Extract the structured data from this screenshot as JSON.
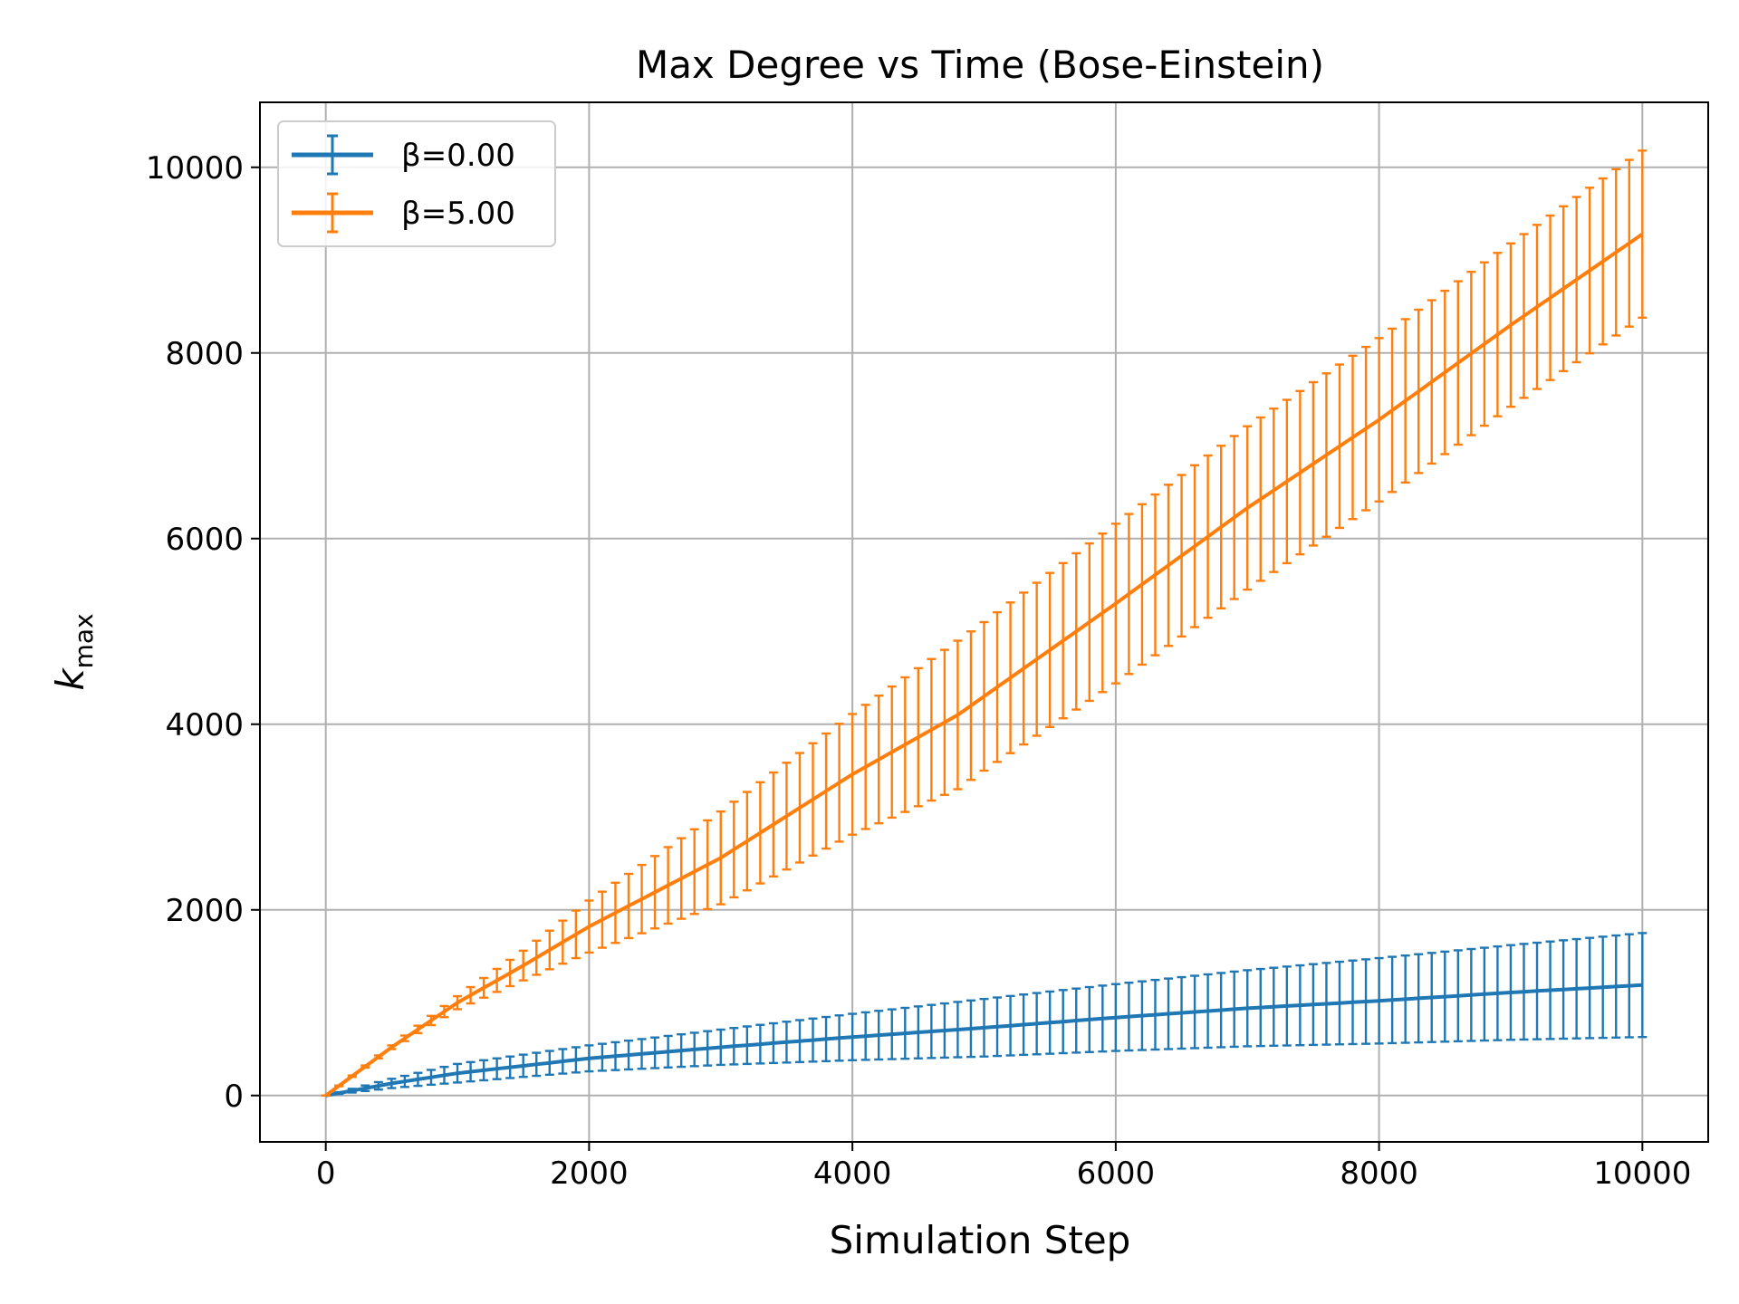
{
  "chart_data": {
    "type": "line",
    "title": "Max Degree vs Time (Bose-Einstein)",
    "xlabel": "Simulation Step",
    "ylabel_main": "k",
    "ylabel_sub": "max",
    "xlim": [
      -500,
      10500
    ],
    "ylim": [
      -500,
      10700
    ],
    "xticks": [
      0,
      2000,
      4000,
      6000,
      8000,
      10000
    ],
    "yticks": [
      0,
      2000,
      4000,
      6000,
      8000,
      10000
    ],
    "grid": true,
    "legend_position": "upper left",
    "error_bars": true,
    "x_step": 100,
    "series": [
      {
        "name": "β=0.00",
        "color": "#1f77b4",
        "mean_points": [
          [
            0,
            0
          ],
          [
            500,
            130
          ],
          [
            1000,
            240
          ],
          [
            2000,
            400
          ],
          [
            3000,
            520
          ],
          [
            4000,
            630
          ],
          [
            5000,
            730
          ],
          [
            6000,
            840
          ],
          [
            7000,
            940
          ],
          [
            8000,
            1020
          ],
          [
            9000,
            1110
          ],
          [
            10000,
            1190
          ]
        ],
        "err_points": [
          [
            0,
            0
          ],
          [
            500,
            50
          ],
          [
            1000,
            100
          ],
          [
            2000,
            140
          ],
          [
            3000,
            190
          ],
          [
            4000,
            250
          ],
          [
            5000,
            310
          ],
          [
            6000,
            360
          ],
          [
            7000,
            410
          ],
          [
            8000,
            460
          ],
          [
            9000,
            510
          ],
          [
            10000,
            560
          ]
        ]
      },
      {
        "name": "β=5.00",
        "color": "#ff7f0e",
        "mean_points": [
          [
            0,
            0
          ],
          [
            500,
            520
          ],
          [
            1000,
            1000
          ],
          [
            1500,
            1400
          ],
          [
            2000,
            1820
          ],
          [
            3000,
            2560
          ],
          [
            4000,
            3460
          ],
          [
            4800,
            4100
          ],
          [
            5000,
            4300
          ],
          [
            6000,
            5300
          ],
          [
            7000,
            6330
          ],
          [
            8000,
            7280
          ],
          [
            9000,
            8300
          ],
          [
            10000,
            9280
          ]
        ],
        "err_points": [
          [
            0,
            0
          ],
          [
            500,
            20
          ],
          [
            1000,
            70
          ],
          [
            1500,
            160
          ],
          [
            2000,
            280
          ],
          [
            3000,
            500
          ],
          [
            4000,
            650
          ],
          [
            4800,
            800
          ],
          [
            5000,
            800
          ],
          [
            6000,
            860
          ],
          [
            7000,
            880
          ],
          [
            8000,
            880
          ],
          [
            9000,
            880
          ],
          [
            10000,
            900
          ]
        ]
      }
    ]
  }
}
